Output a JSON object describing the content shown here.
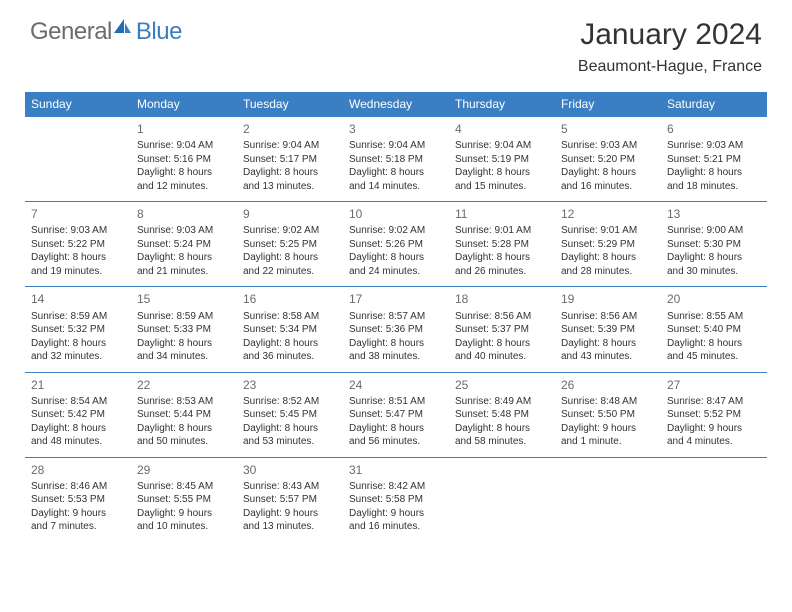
{
  "brand": {
    "name_part1": "General",
    "name_part2": "Blue",
    "colors": {
      "gray": "#6b6b6b",
      "blue": "#3a7fc4"
    }
  },
  "title": "January 2024",
  "location": "Beaumont-Hague, France",
  "styling": {
    "header_bg": "#3a7fc4",
    "header_text": "#ffffff",
    "row_border": "#3a7fc4",
    "body_text": "#333333",
    "daynum_color": "#6b6b6b",
    "page_bg": "#ffffff",
    "header_fontsize": 12,
    "cell_fontsize": 10,
    "title_fontsize": 30,
    "location_fontsize": 16
  },
  "weekdays": [
    "Sunday",
    "Monday",
    "Tuesday",
    "Wednesday",
    "Thursday",
    "Friday",
    "Saturday"
  ],
  "weeks": [
    [
      null,
      {
        "n": "1",
        "sr": "Sunrise: 9:04 AM",
        "ss": "Sunset: 5:16 PM",
        "dl": "Daylight: 8 hours and 12 minutes."
      },
      {
        "n": "2",
        "sr": "Sunrise: 9:04 AM",
        "ss": "Sunset: 5:17 PM",
        "dl": "Daylight: 8 hours and 13 minutes."
      },
      {
        "n": "3",
        "sr": "Sunrise: 9:04 AM",
        "ss": "Sunset: 5:18 PM",
        "dl": "Daylight: 8 hours and 14 minutes."
      },
      {
        "n": "4",
        "sr": "Sunrise: 9:04 AM",
        "ss": "Sunset: 5:19 PM",
        "dl": "Daylight: 8 hours and 15 minutes."
      },
      {
        "n": "5",
        "sr": "Sunrise: 9:03 AM",
        "ss": "Sunset: 5:20 PM",
        "dl": "Daylight: 8 hours and 16 minutes."
      },
      {
        "n": "6",
        "sr": "Sunrise: 9:03 AM",
        "ss": "Sunset: 5:21 PM",
        "dl": "Daylight: 8 hours and 18 minutes."
      }
    ],
    [
      {
        "n": "7",
        "sr": "Sunrise: 9:03 AM",
        "ss": "Sunset: 5:22 PM",
        "dl": "Daylight: 8 hours and 19 minutes."
      },
      {
        "n": "8",
        "sr": "Sunrise: 9:03 AM",
        "ss": "Sunset: 5:24 PM",
        "dl": "Daylight: 8 hours and 21 minutes."
      },
      {
        "n": "9",
        "sr": "Sunrise: 9:02 AM",
        "ss": "Sunset: 5:25 PM",
        "dl": "Daylight: 8 hours and 22 minutes."
      },
      {
        "n": "10",
        "sr": "Sunrise: 9:02 AM",
        "ss": "Sunset: 5:26 PM",
        "dl": "Daylight: 8 hours and 24 minutes."
      },
      {
        "n": "11",
        "sr": "Sunrise: 9:01 AM",
        "ss": "Sunset: 5:28 PM",
        "dl": "Daylight: 8 hours and 26 minutes."
      },
      {
        "n": "12",
        "sr": "Sunrise: 9:01 AM",
        "ss": "Sunset: 5:29 PM",
        "dl": "Daylight: 8 hours and 28 minutes."
      },
      {
        "n": "13",
        "sr": "Sunrise: 9:00 AM",
        "ss": "Sunset: 5:30 PM",
        "dl": "Daylight: 8 hours and 30 minutes."
      }
    ],
    [
      {
        "n": "14",
        "sr": "Sunrise: 8:59 AM",
        "ss": "Sunset: 5:32 PM",
        "dl": "Daylight: 8 hours and 32 minutes."
      },
      {
        "n": "15",
        "sr": "Sunrise: 8:59 AM",
        "ss": "Sunset: 5:33 PM",
        "dl": "Daylight: 8 hours and 34 minutes."
      },
      {
        "n": "16",
        "sr": "Sunrise: 8:58 AM",
        "ss": "Sunset: 5:34 PM",
        "dl": "Daylight: 8 hours and 36 minutes."
      },
      {
        "n": "17",
        "sr": "Sunrise: 8:57 AM",
        "ss": "Sunset: 5:36 PM",
        "dl": "Daylight: 8 hours and 38 minutes."
      },
      {
        "n": "18",
        "sr": "Sunrise: 8:56 AM",
        "ss": "Sunset: 5:37 PM",
        "dl": "Daylight: 8 hours and 40 minutes."
      },
      {
        "n": "19",
        "sr": "Sunrise: 8:56 AM",
        "ss": "Sunset: 5:39 PM",
        "dl": "Daylight: 8 hours and 43 minutes."
      },
      {
        "n": "20",
        "sr": "Sunrise: 8:55 AM",
        "ss": "Sunset: 5:40 PM",
        "dl": "Daylight: 8 hours and 45 minutes."
      }
    ],
    [
      {
        "n": "21",
        "sr": "Sunrise: 8:54 AM",
        "ss": "Sunset: 5:42 PM",
        "dl": "Daylight: 8 hours and 48 minutes."
      },
      {
        "n": "22",
        "sr": "Sunrise: 8:53 AM",
        "ss": "Sunset: 5:44 PM",
        "dl": "Daylight: 8 hours and 50 minutes."
      },
      {
        "n": "23",
        "sr": "Sunrise: 8:52 AM",
        "ss": "Sunset: 5:45 PM",
        "dl": "Daylight: 8 hours and 53 minutes."
      },
      {
        "n": "24",
        "sr": "Sunrise: 8:51 AM",
        "ss": "Sunset: 5:47 PM",
        "dl": "Daylight: 8 hours and 56 minutes."
      },
      {
        "n": "25",
        "sr": "Sunrise: 8:49 AM",
        "ss": "Sunset: 5:48 PM",
        "dl": "Daylight: 8 hours and 58 minutes."
      },
      {
        "n": "26",
        "sr": "Sunrise: 8:48 AM",
        "ss": "Sunset: 5:50 PM",
        "dl": "Daylight: 9 hours and 1 minute."
      },
      {
        "n": "27",
        "sr": "Sunrise: 8:47 AM",
        "ss": "Sunset: 5:52 PM",
        "dl": "Daylight: 9 hours and 4 minutes."
      }
    ],
    [
      {
        "n": "28",
        "sr": "Sunrise: 8:46 AM",
        "ss": "Sunset: 5:53 PM",
        "dl": "Daylight: 9 hours and 7 minutes."
      },
      {
        "n": "29",
        "sr": "Sunrise: 8:45 AM",
        "ss": "Sunset: 5:55 PM",
        "dl": "Daylight: 9 hours and 10 minutes."
      },
      {
        "n": "30",
        "sr": "Sunrise: 8:43 AM",
        "ss": "Sunset: 5:57 PM",
        "dl": "Daylight: 9 hours and 13 minutes."
      },
      {
        "n": "31",
        "sr": "Sunrise: 8:42 AM",
        "ss": "Sunset: 5:58 PM",
        "dl": "Daylight: 9 hours and 16 minutes."
      },
      null,
      null,
      null
    ]
  ]
}
